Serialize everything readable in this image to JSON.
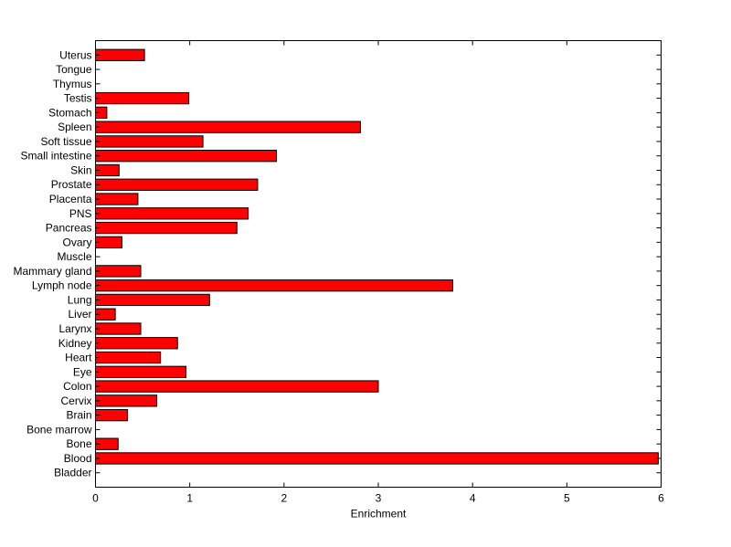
{
  "chart_data": {
    "type": "bar",
    "orientation": "horizontal",
    "title": "",
    "xlabel": "Enrichment",
    "ylabel": "",
    "xlim": [
      0,
      6
    ],
    "xticks": [
      0,
      1,
      2,
      3,
      4,
      5,
      6
    ],
    "grid": false,
    "legend": "none",
    "bar_color": "#ff0000",
    "categories": [
      "Bladder",
      "Blood",
      "Bone",
      "Bone marrow",
      "Brain",
      "Cervix",
      "Colon",
      "Eye",
      "Heart",
      "Kidney",
      "Larynx",
      "Liver",
      "Lung",
      "Lymph node",
      "Mammary gland",
      "Muscle",
      "Ovary",
      "Pancreas",
      "PNS",
      "Placenta",
      "Prostate",
      "Skin",
      "Small intestine",
      "Soft tissue",
      "Spleen",
      "Stomach",
      "Testis",
      "Thymus",
      "Tongue",
      "Uterus"
    ],
    "values": [
      0,
      5.97,
      0.24,
      0,
      0.34,
      0.65,
      3.0,
      0.96,
      0.69,
      0.87,
      0.48,
      0.21,
      1.21,
      3.79,
      0.48,
      0,
      0.28,
      1.5,
      1.62,
      0.45,
      1.72,
      0.25,
      1.92,
      1.14,
      2.81,
      0.12,
      0.99,
      0,
      0,
      0.52
    ]
  }
}
